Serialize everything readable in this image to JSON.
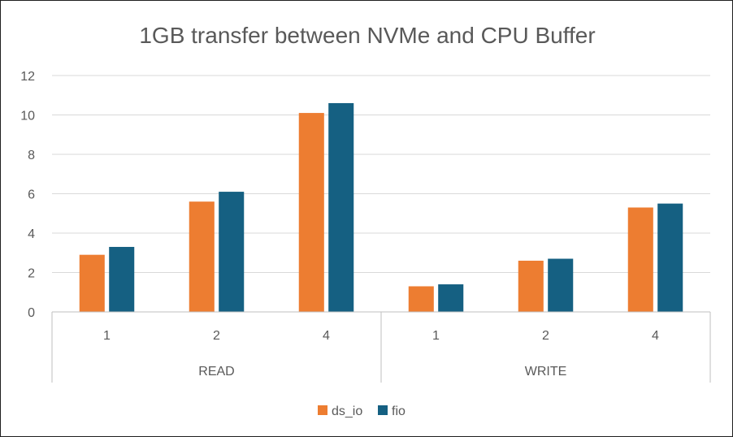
{
  "chart_data": {
    "type": "bar",
    "title": "1GB transfer between NVMe and CPU Buffer",
    "groups": [
      {
        "label": "READ",
        "categories": [
          "1",
          "2",
          "4"
        ]
      },
      {
        "label": "WRITE",
        "categories": [
          "1",
          "2",
          "4"
        ]
      }
    ],
    "series": [
      {
        "name": "ds_io",
        "color": "#ED7D31",
        "values": [
          2.9,
          5.6,
          10.1,
          1.3,
          2.6,
          5.3
        ]
      },
      {
        "name": "fio",
        "color": "#156082",
        "values": [
          3.3,
          6.1,
          10.6,
          1.4,
          2.7,
          5.5
        ]
      }
    ],
    "ylim": [
      0,
      12
    ],
    "yticks": [
      0,
      2,
      4,
      6,
      8,
      10,
      12
    ],
    "grid": true,
    "legend": "bottom",
    "xlabel": "",
    "ylabel": ""
  }
}
